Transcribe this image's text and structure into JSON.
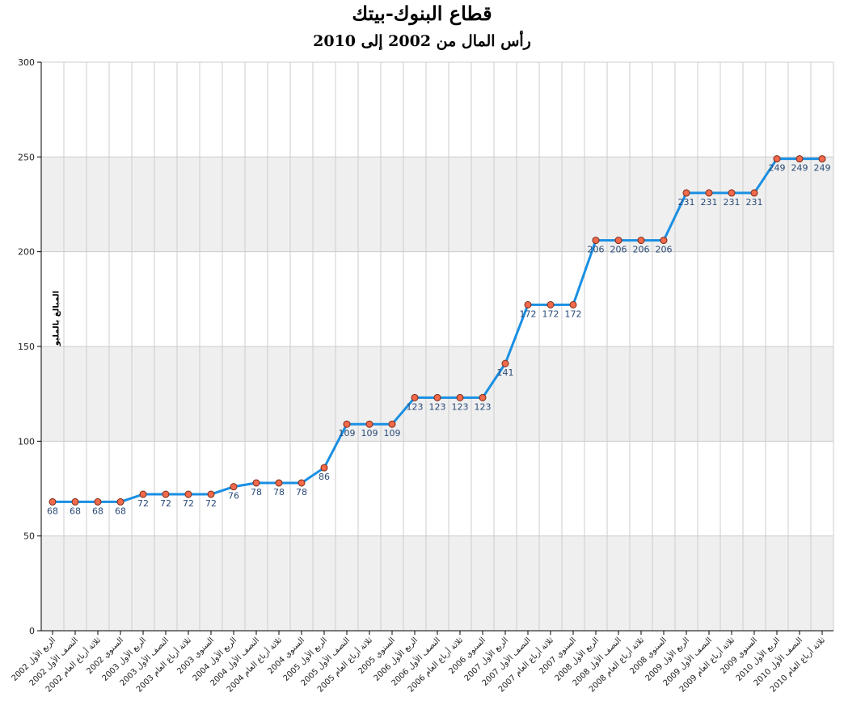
{
  "chart_data": {
    "type": "line",
    "title": "قطاع البنوك-بيتك",
    "subtitle": "رأس المال من 2002 إلى 2010",
    "ylabel": "المبالغ بالمليون دينار كويتي",
    "xlabel": "",
    "ylim": [
      0,
      300
    ],
    "yticks": [
      0,
      50,
      100,
      150,
      200,
      250,
      300
    ],
    "grid": true,
    "categories": [
      "الربع الأول 2002",
      "النصف الأول 2002",
      "ثلاثة أرباع العام 2002",
      "السنوي 2002",
      "الربع الأول 2003",
      "النصف الأول 2003",
      "ثلاثة أرباع العام 2003",
      "السنوي 2003",
      "الربع الأول 2004",
      "النصف الأول 2004",
      "ثلاثة أرباع العام 2004",
      "السنوي 2004",
      "الربع الأول 2005",
      "النصف الأول 2005",
      "ثلاثة أرباع العام 2005",
      "السنوي 2005",
      "الربع الأول 2006",
      "النصف الأول 2006",
      "ثلاثة أرباع العام 2006",
      "السنوي 2006",
      "الربع الأول 2007",
      "النصف الأول 2007",
      "ثلاثة أرباع العام 2007",
      "السنوي 2007",
      "الربع الأول 2008",
      "النصف الأول 2008",
      "ثلاثة أرباع العام 2008",
      "السنوي 2008",
      "الربع الأول 2009",
      "النصف الأول 2009",
      "ثلاثة أرباع العام 2009",
      "السنوي 2009",
      "الربع الأول 2010",
      "النصف الأول 2010",
      "ثلاثة أرباع العام 2010"
    ],
    "series": [
      {
        "values": [
          68,
          68,
          68,
          68,
          72,
          72,
          72,
          72,
          76,
          78,
          78,
          78,
          86,
          109,
          109,
          109,
          123,
          123,
          123,
          123,
          141,
          172,
          172,
          172,
          206,
          206,
          206,
          206,
          231,
          231,
          231,
          231,
          249,
          249,
          249
        ],
        "color": "#1a8fe3",
        "marker_color": "#f26a4b"
      }
    ],
    "colors": {
      "band": "#efefef",
      "grid": "#cccccc",
      "axis": "#000000"
    }
  }
}
